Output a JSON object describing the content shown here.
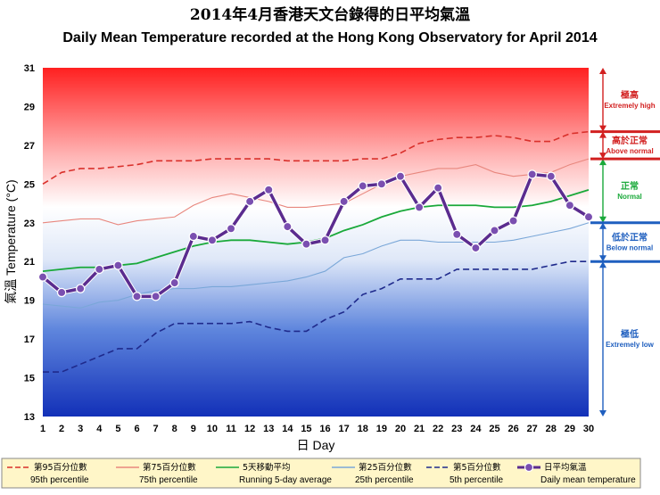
{
  "title_zh": "2014年4月香港天文台錄得的日平均氣溫",
  "title_en": "Daily Mean Temperature recorded at the Hong Kong Observatory for April 2014",
  "chart_data": {
    "type": "line",
    "xlabel": "日 Day",
    "ylabel": "氣溫 Temperature (°C)",
    "xlim": [
      1,
      30
    ],
    "ylim": [
      13,
      31
    ],
    "x_ticks": [
      1,
      2,
      3,
      4,
      5,
      6,
      7,
      8,
      9,
      10,
      11,
      12,
      13,
      14,
      15,
      16,
      17,
      18,
      19,
      20,
      21,
      22,
      23,
      24,
      25,
      26,
      27,
      28,
      29,
      30
    ],
    "y_ticks": [
      13,
      15,
      17,
      19,
      21,
      23,
      25,
      27,
      29,
      31
    ],
    "grid": false,
    "legend_position": "bottom",
    "x": [
      1,
      2,
      3,
      4,
      5,
      6,
      7,
      8,
      9,
      10,
      11,
      12,
      13,
      14,
      15,
      16,
      17,
      18,
      19,
      20,
      21,
      22,
      23,
      24,
      25,
      26,
      27,
      28,
      29,
      30
    ],
    "series": [
      {
        "key": "p95",
        "name_zh": "第95百分位數",
        "name": "95th percentile",
        "color": "#d9302b",
        "style": "dashed",
        "values": [
          25.0,
          25.6,
          25.8,
          25.8,
          25.9,
          26.0,
          26.2,
          26.2,
          26.2,
          26.3,
          26.3,
          26.3,
          26.3,
          26.2,
          26.2,
          26.2,
          26.2,
          26.3,
          26.3,
          26.6,
          27.1,
          27.3,
          27.4,
          27.4,
          27.5,
          27.4,
          27.2,
          27.2,
          27.6,
          27.7
        ]
      },
      {
        "key": "p75",
        "name_zh": "第75百分位數",
        "name": "75th percentile",
        "color": "#e8877e",
        "style": "solid",
        "values": [
          23.0,
          23.1,
          23.2,
          23.2,
          22.9,
          23.1,
          23.2,
          23.3,
          23.9,
          24.3,
          24.5,
          24.3,
          24.1,
          23.8,
          23.8,
          23.9,
          24.0,
          24.5,
          25.0,
          25.4,
          25.6,
          25.8,
          25.8,
          26.0,
          25.6,
          25.4,
          25.5,
          25.6,
          26.0,
          26.3
        ]
      },
      {
        "key": "run5",
        "name_zh": "5天移動平均",
        "name": "Running 5-day average",
        "color": "#1aa93a",
        "style": "solid",
        "values": [
          20.5,
          20.6,
          20.7,
          20.7,
          20.8,
          20.9,
          21.2,
          21.5,
          21.8,
          22.0,
          22.1,
          22.1,
          22.0,
          21.9,
          22.0,
          22.2,
          22.6,
          22.9,
          23.3,
          23.6,
          23.8,
          23.9,
          23.9,
          23.9,
          23.8,
          23.8,
          23.9,
          24.1,
          24.4,
          24.7
        ]
      },
      {
        "key": "p25",
        "name_zh": "第25百分位數",
        "name": "25th percentile",
        "color": "#7aa7d8",
        "style": "solid",
        "values": [
          18.8,
          18.7,
          18.6,
          18.9,
          19.0,
          19.3,
          19.5,
          19.6,
          19.6,
          19.7,
          19.7,
          19.8,
          19.9,
          20.0,
          20.2,
          20.5,
          21.2,
          21.4,
          21.8,
          22.1,
          22.1,
          22.0,
          22.0,
          22.0,
          22.0,
          22.1,
          22.3,
          22.5,
          22.7,
          23.0
        ]
      },
      {
        "key": "p5",
        "name_zh": "第5百分位數",
        "name": "5th percentile",
        "color": "#1f2a8c",
        "style": "dashed",
        "values": [
          15.3,
          15.3,
          15.7,
          16.1,
          16.5,
          16.5,
          17.3,
          17.8,
          17.8,
          17.8,
          17.8,
          17.9,
          17.6,
          17.4,
          17.4,
          18.0,
          18.4,
          19.3,
          19.6,
          20.1,
          20.1,
          20.1,
          20.6,
          20.6,
          20.6,
          20.6,
          20.6,
          20.8,
          21.0,
          21.0
        ]
      },
      {
        "key": "mean",
        "name_zh": "日平均氣溫",
        "name": "Daily mean temperature",
        "color": "#5b2c8f",
        "style": "solid-markers",
        "values": [
          20.2,
          19.4,
          19.6,
          20.6,
          20.8,
          19.2,
          19.2,
          19.9,
          22.3,
          22.1,
          22.7,
          24.1,
          24.7,
          22.8,
          21.9,
          22.1,
          24.1,
          24.9,
          25.0,
          25.4,
          23.8,
          24.8,
          22.4,
          21.7,
          22.6,
          23.1,
          25.5,
          25.4,
          23.9,
          23.3
        ]
      }
    ],
    "annotations": [
      {
        "zh": "極高",
        "en": "Extremely high",
        "color": "#d22020",
        "range": [
          27.7,
          31
        ]
      },
      {
        "zh": "高於正常",
        "en": "Above normal",
        "color": "#d22020",
        "range": [
          26.3,
          27.7
        ]
      },
      {
        "zh": "正常",
        "en": "Normal",
        "color": "#1aa93a",
        "range": [
          23.0,
          26.3
        ]
      },
      {
        "zh": "低於正常",
        "en": "Below normal",
        "color": "#1f5fbf",
        "range": [
          21.0,
          23.0
        ]
      },
      {
        "zh": "極低",
        "en": "Extremely low",
        "color": "#1f5fbf",
        "range": [
          13,
          21.0
        ]
      }
    ]
  }
}
